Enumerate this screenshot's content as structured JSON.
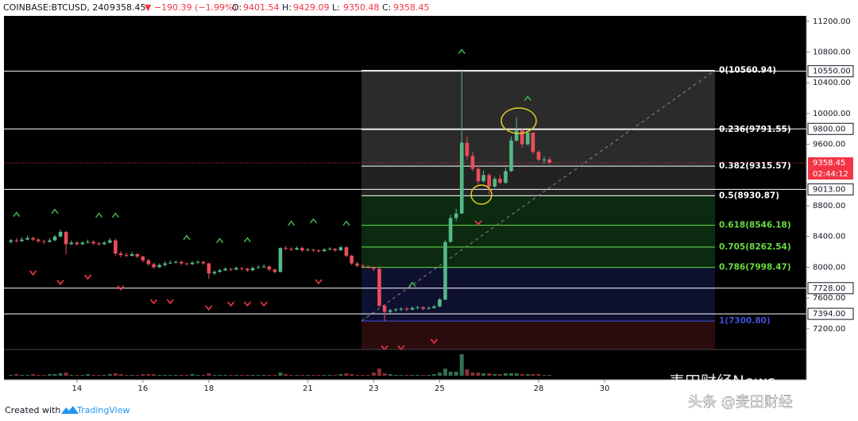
{
  "header": {
    "symbol": "COINBASE:BTCUSD, 240",
    "price": "9358.45",
    "change": "▼ −190.39 (−1.99%)",
    "ohlc": [
      {
        "label": "O:",
        "value": "9401.54"
      },
      {
        "label": "H:",
        "value": "9429.09"
      },
      {
        "label": "L:",
        "value": "9350.48"
      },
      {
        "label": "C:",
        "value": "9358.45"
      }
    ]
  },
  "chart_data": {
    "type": "candlestick",
    "up_color": "#53b987",
    "down_color": "#eb4d5c",
    "x": [
      12,
      12.17,
      12.33,
      12.5,
      12.67,
      12.83,
      13,
      13.17,
      13.33,
      13.5,
      13.67,
      13.83,
      14,
      14.17,
      14.33,
      14.5,
      14.67,
      14.83,
      15,
      15.17,
      15.33,
      15.5,
      15.67,
      15.83,
      16,
      16.17,
      16.33,
      16.5,
      16.67,
      16.83,
      17,
      17.17,
      17.33,
      17.5,
      17.67,
      17.83,
      18,
      18.17,
      18.33,
      18.5,
      18.67,
      18.83,
      19,
      19.17,
      19.33,
      19.5,
      19.67,
      19.83,
      20,
      20.17,
      20.33,
      20.5,
      20.67,
      20.83,
      21,
      21.17,
      21.33,
      21.5,
      21.67,
      21.83,
      22,
      22.17,
      22.33,
      22.5,
      22.67,
      22.83,
      23,
      23.17,
      23.33,
      23.5,
      23.67,
      23.83,
      24,
      24.17,
      24.33,
      24.5,
      24.67,
      24.83,
      25,
      25.17,
      25.33,
      25.5,
      25.67,
      25.83,
      26,
      26.17,
      26.33,
      26.5,
      26.67,
      26.83,
      27,
      27.17,
      27.33,
      27.5,
      27.67,
      27.83,
      28,
      28.17,
      28.33
    ],
    "ohlc": [
      [
        8330,
        8370,
        8310,
        8350
      ],
      [
        8350,
        8380,
        8320,
        8340
      ],
      [
        8340,
        8390,
        8330,
        8360
      ],
      [
        8360,
        8410,
        8350,
        8380
      ],
      [
        8380,
        8400,
        8340,
        8360
      ],
      [
        8360,
        8380,
        8320,
        8340
      ],
      [
        8340,
        8360,
        8300,
        8330
      ],
      [
        8330,
        8380,
        8320,
        8350
      ],
      [
        8350,
        8420,
        8340,
        8400
      ],
      [
        8400,
        8490,
        8390,
        8460
      ],
      [
        8460,
        8470,
        8170,
        8300
      ],
      [
        8300,
        8350,
        8290,
        8320
      ],
      [
        8320,
        8340,
        8280,
        8300
      ],
      [
        8300,
        8340,
        8290,
        8320
      ],
      [
        8320,
        8360,
        8310,
        8330
      ],
      [
        8330,
        8350,
        8290,
        8310
      ],
      [
        8310,
        8330,
        8280,
        8300
      ],
      [
        8300,
        8340,
        8290,
        8320
      ],
      [
        8320,
        8380,
        8310,
        8350
      ],
      [
        8350,
        8370,
        8150,
        8180
      ],
      [
        8180,
        8210,
        8130,
        8160
      ],
      [
        8160,
        8190,
        8130,
        8150
      ],
      [
        8150,
        8200,
        8140,
        8170
      ],
      [
        8170,
        8180,
        8120,
        8140
      ],
      [
        8140,
        8150,
        8060,
        8090
      ],
      [
        8090,
        8110,
        8020,
        8040
      ],
      [
        8040,
        8060,
        7980,
        8000
      ],
      [
        8000,
        8050,
        7990,
        8030
      ],
      [
        8030,
        8080,
        8010,
        8050
      ],
      [
        8050,
        8090,
        8040,
        8060
      ],
      [
        8060,
        8090,
        8050,
        8070
      ],
      [
        8070,
        8090,
        8030,
        8050
      ],
      [
        8050,
        8060,
        8020,
        8040
      ],
      [
        8040,
        8080,
        8030,
        8060
      ],
      [
        8060,
        8090,
        8040,
        8070
      ],
      [
        8070,
        8080,
        8030,
        8050
      ],
      [
        8050,
        8060,
        7850,
        7920
      ],
      [
        7920,
        7960,
        7900,
        7940
      ],
      [
        7940,
        7980,
        7930,
        7960
      ],
      [
        7960,
        8000,
        7950,
        7980
      ],
      [
        7980,
        7990,
        7950,
        7970
      ],
      [
        7970,
        8010,
        7960,
        7990
      ],
      [
        7990,
        8000,
        7960,
        7980
      ],
      [
        7980,
        7990,
        7940,
        7960
      ],
      [
        7960,
        8010,
        7950,
        7990
      ],
      [
        7990,
        8030,
        7980,
        8000
      ],
      [
        8000,
        8040,
        7990,
        8010
      ],
      [
        8010,
        8020,
        7950,
        7970
      ],
      [
        7970,
        7980,
        7920,
        7940
      ],
      [
        7940,
        8260,
        7930,
        8250
      ],
      [
        8250,
        8280,
        8220,
        8240
      ],
      [
        8240,
        8260,
        8210,
        8230
      ],
      [
        8230,
        8270,
        8220,
        8250
      ],
      [
        8250,
        8270,
        8200,
        8220
      ],
      [
        8220,
        8250,
        8210,
        8230
      ],
      [
        8230,
        8240,
        8200,
        8220
      ],
      [
        8220,
        8230,
        8190,
        8210
      ],
      [
        8210,
        8250,
        8200,
        8230
      ],
      [
        8230,
        8260,
        8220,
        8240
      ],
      [
        8240,
        8250,
        8200,
        8220
      ],
      [
        8220,
        8280,
        8210,
        8260
      ],
      [
        8260,
        8270,
        8130,
        8150
      ],
      [
        8150,
        8160,
        8030,
        8050
      ],
      [
        8050,
        8070,
        8000,
        8020
      ],
      [
        8020,
        8040,
        7990,
        8010
      ],
      [
        8010,
        8020,
        7980,
        8000
      ],
      [
        8000,
        8010,
        7950,
        7980
      ],
      [
        7980,
        7990,
        7480,
        7500
      ],
      [
        7500,
        7520,
        7300.8,
        7420
      ],
      [
        7420,
        7460,
        7400,
        7440
      ],
      [
        7440,
        7470,
        7420,
        7450
      ],
      [
        7450,
        7480,
        7430,
        7460
      ],
      [
        7460,
        7480,
        7430,
        7450
      ],
      [
        7450,
        7490,
        7440,
        7470
      ],
      [
        7470,
        7500,
        7450,
        7480
      ],
      [
        7480,
        7490,
        7440,
        7460
      ],
      [
        7460,
        7490,
        7450,
        7470
      ],
      [
        7470,
        7510,
        7460,
        7490
      ],
      [
        7490,
        7600,
        7480,
        7580
      ],
      [
        7580,
        8350,
        7570,
        8330
      ],
      [
        8330,
        8680,
        8320,
        8640
      ],
      [
        8640,
        8760,
        8600,
        8700
      ],
      [
        8700,
        10560.94,
        8690,
        9620
      ],
      [
        9620,
        9700,
        9400,
        9450
      ],
      [
        9450,
        9500,
        9250,
        9280
      ],
      [
        9280,
        9320,
        9080,
        9120
      ],
      [
        9120,
        9260,
        9100,
        9200
      ],
      [
        9200,
        9220,
        8950,
        9050
      ],
      [
        9050,
        9180,
        9030,
        9150
      ],
      [
        9150,
        9200,
        9080,
        9100
      ],
      [
        9100,
        9300,
        9080,
        9250
      ],
      [
        9250,
        9700,
        9240,
        9650
      ],
      [
        9650,
        9950,
        9630,
        9780
      ],
      [
        9780,
        9800,
        9560,
        9600
      ],
      [
        9600,
        9790,
        9580,
        9750
      ],
      [
        9750,
        9760,
        9470,
        9500
      ],
      [
        9500,
        9520,
        9380,
        9400
      ],
      [
        9400,
        9440,
        9350,
        9401.54
      ],
      [
        9401.54,
        9429.09,
        9350.48,
        9358.45
      ]
    ],
    "xlim": [
      11.86,
      36.12
    ],
    "xticks": [
      14,
      16,
      18,
      21,
      23,
      25,
      28,
      30
    ],
    "ylim": [
      6930,
      11270
    ],
    "yticks": [
      {
        "value": 7200,
        "label": "7200.00"
      },
      {
        "value": 7600,
        "label": "7600.00"
      },
      {
        "value": 8000,
        "label": "8000.00"
      },
      {
        "value": 8400,
        "label": "8400.00"
      },
      {
        "value": 8800,
        "label": "8800.00"
      },
      {
        "value": 9600,
        "label": "9600.00"
      },
      {
        "value": 10000,
        "label": "10000.00"
      },
      {
        "value": 10400,
        "label": "10400.00"
      },
      {
        "value": 10800,
        "label": "10800.00"
      },
      {
        "value": 11200,
        "label": "11200.00"
      }
    ],
    "price_lines": [
      {
        "value": 10550,
        "label": "10550.00"
      },
      {
        "value": 9800,
        "label": "9800.00"
      },
      {
        "value": 9013,
        "label": "9013.00"
      },
      {
        "value": 7728,
        "label": "7728.00"
      },
      {
        "value": 7394,
        "label": "7394.00"
      }
    ],
    "last_price": {
      "value": 9358.45,
      "label": "9358.45",
      "countdown": "02:44:12",
      "color": "#f23645"
    },
    "fib": {
      "x": [
        22.63,
        33.35
      ],
      "below_fill": "#2a0c0e",
      "levels": [
        {
          "value": 10560.94,
          "label": "0(10560.94)",
          "color": "#ffffff"
        },
        {
          "value": 9791.55,
          "label": "0.236(9791.55)",
          "color": "#ffffff",
          "fill": "#2b2b2b"
        },
        {
          "value": 9315.57,
          "label": "0.382(9315.57)",
          "color": "#ffffff",
          "fill": "#2b2b2b"
        },
        {
          "value": 8930.87,
          "label": "0.5(8930.87)",
          "color": "#ffffff",
          "fill": "#222222"
        },
        {
          "value": 8546.18,
          "label": "0.618(8546.18)",
          "color": "#66dd44",
          "fill": "#0c2a10"
        },
        {
          "value": 8262.54,
          "label": "0.705(8262.54)",
          "color": "#66dd44",
          "fill": "#0c2a10"
        },
        {
          "value": 7998.47,
          "label": "0.786(7998.47)",
          "color": "#66dd44",
          "fill": "#0c2a10"
        },
        {
          "value": 7300.8,
          "label": "1(7300.80)",
          "color": "#3f51d8",
          "fill": "#0e1030"
        }
      ]
    },
    "signals_up": {
      "color": "#3fae49",
      "x": [
        12.17,
        13.33,
        14.67,
        15.17,
        17.33,
        18.33,
        19.17,
        20.5,
        21.17,
        22.17,
        24.17,
        25.67,
        27.67
      ],
      "y": [
        8690,
        8730,
        8680,
        8680,
        8390,
        8350,
        8360,
        8575,
        8605,
        8575,
        7780,
        10810,
        10200
      ]
    },
    "signals_down": {
      "color": "#f23645",
      "x": [
        12.67,
        13.5,
        14.33,
        15.33,
        16.33,
        16.83,
        18,
        18.67,
        19.17,
        19.67,
        21.33,
        23.33,
        23.83,
        24.83,
        26.17
      ],
      "y": [
        7924,
        7800,
        7870,
        7730,
        7550,
        7550,
        7470,
        7520,
        7520,
        7520,
        7810,
        6950,
        6950,
        7035,
        8575
      ]
    },
    "volume": {
      "ylim": [
        0,
        30
      ],
      "yticks": [
        0
      ],
      "values": [
        1,
        2,
        1,
        1,
        2,
        1,
        1,
        2,
        2,
        3,
        4,
        1,
        1,
        1,
        2,
        1,
        1,
        1,
        2,
        3,
        2,
        1,
        1,
        1,
        2,
        2,
        2,
        1,
        1,
        1,
        1,
        1,
        1,
        2,
        1,
        1,
        3,
        1,
        1,
        1,
        1,
        1,
        1,
        1,
        1,
        1,
        1,
        1,
        1,
        4,
        2,
        1,
        1,
        1,
        1,
        1,
        1,
        1,
        1,
        1,
        2,
        3,
        2,
        1,
        1,
        1,
        4,
        9,
        3,
        2,
        1,
        1,
        1,
        1,
        1,
        1,
        1,
        2,
        4,
        9,
        5,
        5,
        27,
        8,
        4,
        4,
        3,
        3,
        2,
        2,
        3,
        3,
        3,
        2,
        2,
        2,
        2,
        1,
        1
      ]
    }
  },
  "footer": {
    "created": "Created with",
    "brand": "TradingView"
  },
  "watermark": {
    "line1": "麦田财经News",
    "line2": "头条 @麦田财经"
  }
}
